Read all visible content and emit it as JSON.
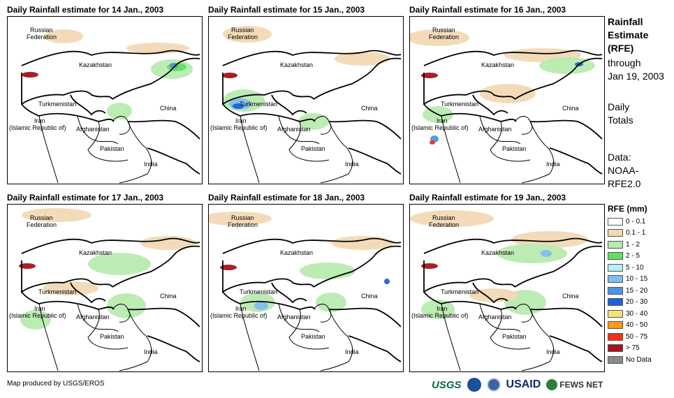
{
  "panels": [
    {
      "title": "Daily Rainfall estimate for 14 Jan., 2003"
    },
    {
      "title": "Daily Rainfall estimate for 15 Jan., 2003"
    },
    {
      "title": "Daily Rainfall estimate for 16 Jan., 2003"
    },
    {
      "title": "Daily Rainfall estimate for 17 Jan., 2003"
    },
    {
      "title": "Daily Rainfall estimate for 18 Jan., 2003"
    },
    {
      "title": "Daily Rainfall estimate for 19 Jan., 2003"
    }
  ],
  "labels": {
    "russia_1": "Russian",
    "russia_2": "Federation",
    "kazakhstan": "Kazakhstan",
    "turkmenistan": "Turkmenistan",
    "iran_1": "Iran",
    "iran_2": "(Islamic Republic of)",
    "afghanistan": "Afghanistan",
    "pakistan": "Pakistan",
    "china": "China",
    "india": "India"
  },
  "side": {
    "title_lines": [
      "Rainfall",
      "Estimate",
      "(RFE)"
    ],
    "through_lines": [
      "through",
      "Jan 19, 2003"
    ],
    "totals_lines": [
      "Daily",
      "Totals"
    ],
    "data_lines": [
      "Data:",
      "NOAA-",
      "RFE2.0"
    ]
  },
  "legend": {
    "title": "RFE (mm)",
    "items": [
      {
        "label": "0 - 0.1",
        "color": "#ffffff"
      },
      {
        "label": "0.1 - 1",
        "color": "#f2d9b5"
      },
      {
        "label": "1 - 2",
        "color": "#b8ebb0"
      },
      {
        "label": "2 - 5",
        "color": "#5fe05f"
      },
      {
        "label": "5 - 10",
        "color": "#b4eef8"
      },
      {
        "label": "10 - 15",
        "color": "#82bdf0"
      },
      {
        "label": "15 - 20",
        "color": "#4b93e6"
      },
      {
        "label": "20 - 30",
        "color": "#1f62d8"
      },
      {
        "label": "30 - 40",
        "color": "#fbe07a"
      },
      {
        "label": "40 - 50",
        "color": "#f49c14"
      },
      {
        "label": "50 - 75",
        "color": "#ef3312"
      },
      {
        "label": "> 75",
        "color": "#a3141a"
      },
      {
        "label": "No Data",
        "color": "#8a8a8a"
      }
    ]
  },
  "credit": "Map produced by USGS/EROS",
  "logos": {
    "usgs": "USGS",
    "usaid": "USAID",
    "fews": "FEWS NET"
  }
}
